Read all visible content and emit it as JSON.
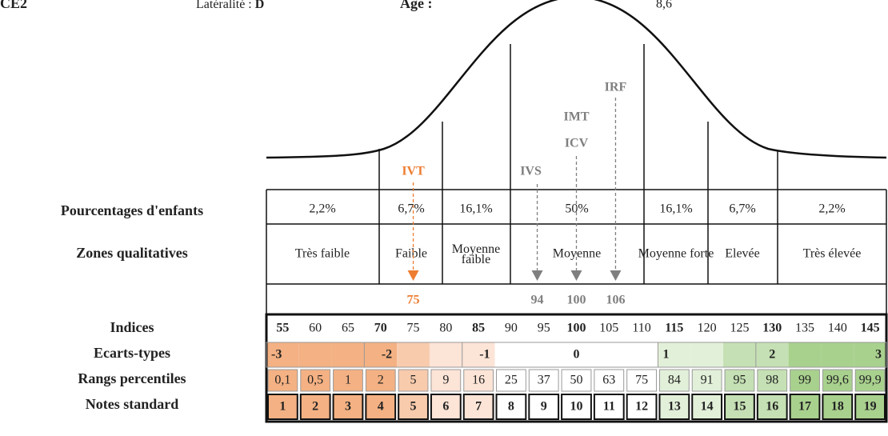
{
  "header": {
    "class": "CE2",
    "laterality_label": "Latéralité : ",
    "laterality": "D",
    "age_label": "Age :",
    "age": "8,6"
  },
  "row_labels": [
    "Pourcentages d'enfants",
    "Zones qualitatives",
    "Indices",
    "Ecarts-types",
    "Rangs percentiles",
    "Notes standard"
  ],
  "percentages": [
    "2,2%",
    "6,7%",
    "16,1%",
    "50%",
    "16,1%",
    "6,7%",
    "2,2%"
  ],
  "zones": [
    "Très faible",
    "Faible",
    "Moyenne faible",
    "Moyenne",
    "Moyenne forte",
    "Elevée",
    "Très élevée"
  ],
  "indices": [
    55,
    60,
    65,
    70,
    75,
    80,
    85,
    90,
    95,
    100,
    105,
    110,
    115,
    120,
    125,
    130,
    135,
    140,
    145
  ],
  "ecarts_types": [
    -3,
    -2,
    -1,
    0,
    1,
    2,
    3
  ],
  "percentiles": [
    "0,1",
    "0,5",
    "1",
    "2",
    "5",
    "9",
    "16",
    "25",
    "37",
    "50",
    "63",
    "75",
    "84",
    "91",
    "95",
    "98",
    "99",
    "99,6",
    "99,9"
  ],
  "notes": [
    1,
    2,
    3,
    4,
    5,
    6,
    7,
    8,
    9,
    10,
    11,
    12,
    13,
    14,
    15,
    16,
    17,
    18,
    19
  ],
  "markers": [
    {
      "labels": [
        "IVT"
      ],
      "score": 75,
      "color": "#ed7d31"
    },
    {
      "labels": [
        "IVS"
      ],
      "score": 94,
      "color": "#7f7f7f"
    },
    {
      "labels": [
        "IMT",
        "ICV"
      ],
      "score": 100,
      "color": "#7f7f7f"
    },
    {
      "labels": [
        "IRF"
      ],
      "score": 106,
      "color": "#7f7f7f"
    }
  ]
}
